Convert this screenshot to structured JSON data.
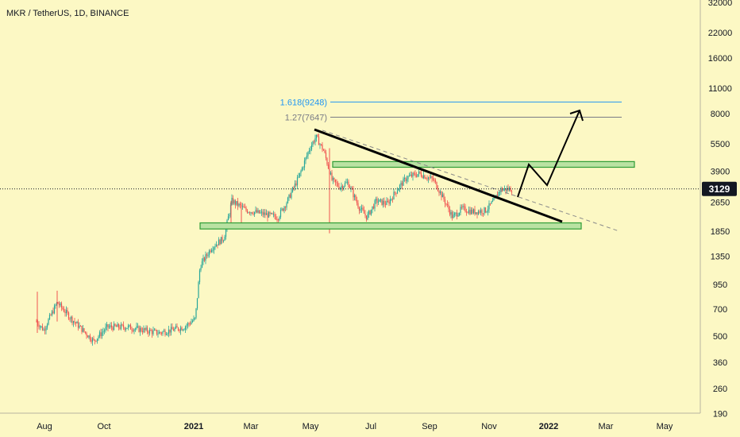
{
  "header": {
    "title": "MKR / TetherUS, 1D, BINANCE"
  },
  "price_badge": {
    "label": "3129"
  },
  "fib_labels": {
    "level_1618": "1.618(9248)",
    "level_127": "1.27(7647)"
  },
  "colors": {
    "background": "#fcf8c4",
    "candle_up": "#26a69a",
    "candle_down": "#ef5350",
    "zone_fill": "#b9e2a2",
    "zone_border": "#2e9d36",
    "fib_1618": "#2196f3",
    "fib_127": "#787b86",
    "trendline": "#000000",
    "badge_bg": "#131722",
    "badge_text": "#ffffff"
  },
  "chart_data": {
    "type": "candlestick",
    "title": "MKR / TetherUS, 1D, BINANCE",
    "y_scale": "log",
    "y_ticks": [
      190,
      260,
      360,
      500,
      700,
      950,
      1350,
      1850,
      2650,
      3900,
      5500,
      8000,
      11000,
      16000,
      22000,
      32000
    ],
    "x_ticks": [
      "Aug",
      "Oct",
      "2021",
      "Mar",
      "May",
      "Jul",
      "Sep",
      "Nov",
      "2022",
      "Mar",
      "May"
    ],
    "current_price": 3129,
    "price_path": [
      {
        "x": "Aug",
        "y": 600
      },
      {
        "x": "Oct",
        "y": 560
      },
      {
        "x": "2021",
        "y": 600
      },
      {
        "x": "Mar",
        "y": 2400
      },
      {
        "x": "May",
        "y": 6000
      },
      {
        "x": "Jul",
        "y": 2300
      },
      {
        "x": "Sep",
        "y": 3800
      },
      {
        "x": "Nov",
        "y": 2400
      },
      {
        "x": "Nov",
        "y": 3129
      }
    ],
    "fib_levels": [
      {
        "label": "1.618(9248)",
        "value": 9248
      },
      {
        "label": "1.27(7647)",
        "value": 7647
      }
    ],
    "zones": [
      {
        "name": "resistance",
        "low": 4100,
        "high": 4400
      },
      {
        "name": "support",
        "low": 1900,
        "high": 2050
      }
    ]
  }
}
